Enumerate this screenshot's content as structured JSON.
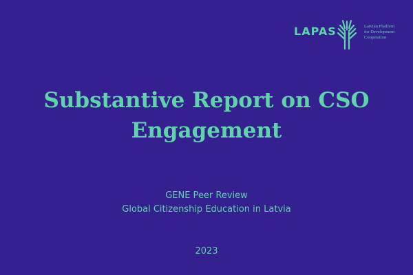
{
  "logo": {
    "name": "LAPAS",
    "tagline": [
      "Latvian Platform",
      "for Development",
      "Cooperation"
    ]
  },
  "title": [
    "Substantive Report on CSO",
    "Engagement"
  ],
  "subtitle": [
    "GENE Peer Review",
    "Global Citizenship Education in Latvia"
  ],
  "year": "2023"
}
